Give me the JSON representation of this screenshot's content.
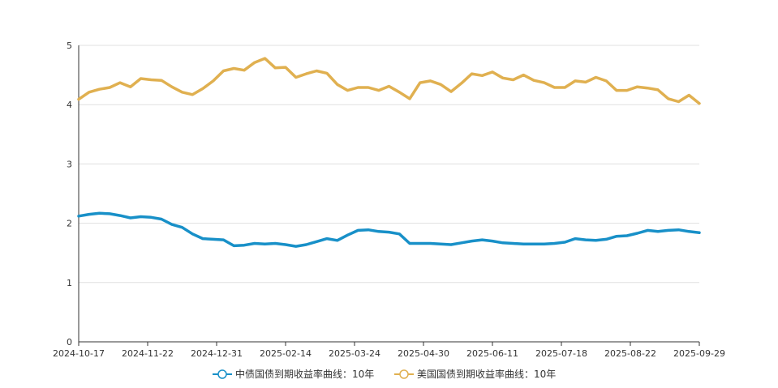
{
  "chart_data": {
    "type": "line",
    "title": "",
    "xlabel": "",
    "ylabel": "",
    "ylim": [
      0,
      5
    ],
    "y_ticks": [
      "0",
      "1",
      "2",
      "3",
      "4",
      "5"
    ],
    "x_ticks": [
      "2024-10-17",
      "2024-11-22",
      "2024-12-31",
      "2025-02-14",
      "2025-03-24",
      "2025-04-30",
      "2025-06-11",
      "2025-07-18",
      "2025-08-22",
      "2025-09-29"
    ],
    "grid": true,
    "legend_position": "bottom-center",
    "series": [
      {
        "name": "中债国债到期收益率曲线：10年",
        "color": "#1890c8",
        "values": [
          2.12,
          2.15,
          2.17,
          2.16,
          2.13,
          2.09,
          2.11,
          2.1,
          2.07,
          1.98,
          1.93,
          1.82,
          1.74,
          1.73,
          1.72,
          1.62,
          1.63,
          1.66,
          1.65,
          1.66,
          1.64,
          1.61,
          1.64,
          1.69,
          1.74,
          1.71,
          1.8,
          1.88,
          1.89,
          1.86,
          1.85,
          1.82,
          1.66,
          1.66,
          1.66,
          1.65,
          1.64,
          1.67,
          1.7,
          1.72,
          1.7,
          1.67,
          1.66,
          1.65,
          1.65,
          1.65,
          1.66,
          1.68,
          1.74,
          1.72,
          1.71,
          1.73,
          1.78,
          1.79,
          1.83,
          1.88,
          1.86,
          1.88,
          1.89,
          1.86,
          1.84
        ]
      },
      {
        "name": "美国国债到期收益率曲线：10年",
        "color": "#e0b050",
        "values": [
          4.09,
          4.21,
          4.26,
          4.29,
          4.37,
          4.3,
          4.44,
          4.42,
          4.41,
          4.3,
          4.21,
          4.17,
          4.27,
          4.4,
          4.57,
          4.61,
          4.58,
          4.71,
          4.78,
          4.62,
          4.63,
          4.46,
          4.52,
          4.57,
          4.53,
          4.34,
          4.24,
          4.29,
          4.29,
          4.24,
          4.31,
          4.21,
          4.1,
          4.37,
          4.4,
          4.34,
          4.22,
          4.36,
          4.52,
          4.49,
          4.55,
          4.45,
          4.42,
          4.5,
          4.41,
          4.37,
          4.29,
          4.29,
          4.4,
          4.38,
          4.46,
          4.4,
          4.24,
          4.24,
          4.3,
          4.28,
          4.25,
          4.1,
          4.05,
          4.16,
          4.02
        ]
      }
    ]
  }
}
